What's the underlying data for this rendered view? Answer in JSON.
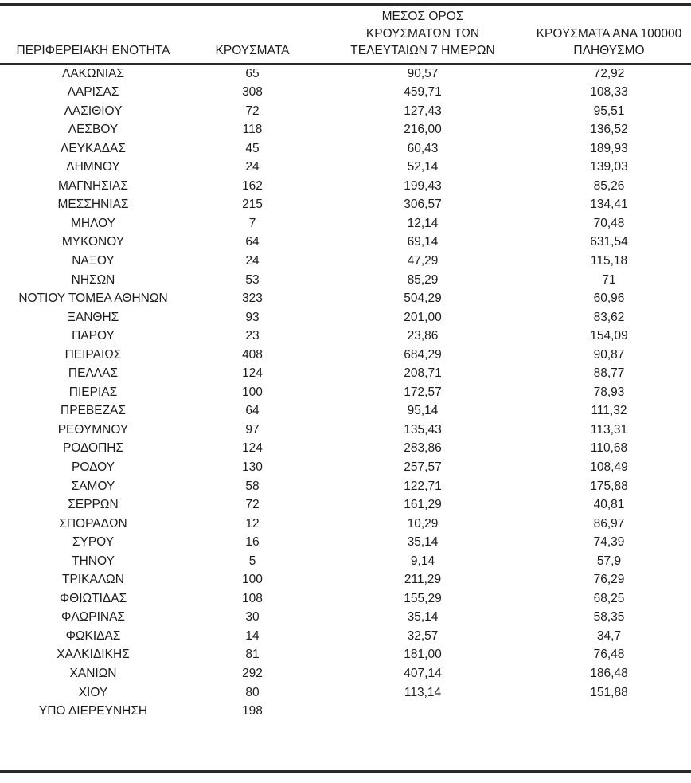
{
  "table": {
    "headers": {
      "col1": "ΠΕΡΙΦΕΡΕΙΑΚΗ ΕΝΟΤΗΤΑ",
      "col2": "ΚΡΟΥΣΜΑΤΑ",
      "col3_line1": "ΜΕΣΟΣ ΟΡΟΣ",
      "col3_line2": "ΚΡΟΥΣΜΑΤΩΝ ΤΩΝ",
      "col3_line3": "ΤΕΛΕΥΤΑΙΩΝ 7 ΗΜΕΡΩΝ",
      "col4_line1": "ΚΡΟΥΣΜΑΤΑ ΑΝΑ 100000",
      "col4_line2": "ΠΛΗΘΥΣΜΟ"
    },
    "rows": [
      [
        "ΛΑΚΩΝΙΑΣ",
        "65",
        "90,57",
        "72,92"
      ],
      [
        "ΛΑΡΙΣΑΣ",
        "308",
        "459,71",
        "108,33"
      ],
      [
        "ΛΑΣΙΘΙΟΥ",
        "72",
        "127,43",
        "95,51"
      ],
      [
        "ΛΕΣΒΟΥ",
        "118",
        "216,00",
        "136,52"
      ],
      [
        "ΛΕΥΚΑΔΑΣ",
        "45",
        "60,43",
        "189,93"
      ],
      [
        "ΛΗΜΝΟΥ",
        "24",
        "52,14",
        "139,03"
      ],
      [
        "ΜΑΓΝΗΣΙΑΣ",
        "162",
        "199,43",
        "85,26"
      ],
      [
        "ΜΕΣΣΗΝΙΑΣ",
        "215",
        "306,57",
        "134,41"
      ],
      [
        "ΜΗΛΟΥ",
        "7",
        "12,14",
        "70,48"
      ],
      [
        "ΜΥΚΟΝΟΥ",
        "64",
        "69,14",
        "631,54"
      ],
      [
        "ΝΑΞΟΥ",
        "24",
        "47,29",
        "115,18"
      ],
      [
        "ΝΗΣΩΝ",
        "53",
        "85,29",
        "71"
      ],
      [
        "ΝΟΤΙΟΥ ΤΟΜΕΑ ΑΘΗΝΩΝ",
        "323",
        "504,29",
        "60,96"
      ],
      [
        "ΞΑΝΘΗΣ",
        "93",
        "201,00",
        "83,62"
      ],
      [
        "ΠΑΡΟΥ",
        "23",
        "23,86",
        "154,09"
      ],
      [
        "ΠΕΙΡΑΙΩΣ",
        "408",
        "684,29",
        "90,87"
      ],
      [
        "ΠΕΛΛΑΣ",
        "124",
        "208,71",
        "88,77"
      ],
      [
        "ΠΙΕΡΙΑΣ",
        "100",
        "172,57",
        "78,93"
      ],
      [
        "ΠΡΕΒΕΖΑΣ",
        "64",
        "95,14",
        "111,32"
      ],
      [
        "ΡΕΘΥΜΝΟΥ",
        "97",
        "135,43",
        "113,31"
      ],
      [
        "ΡΟΔΟΠΗΣ",
        "124",
        "283,86",
        "110,68"
      ],
      [
        "ΡΟΔΟΥ",
        "130",
        "257,57",
        "108,49"
      ],
      [
        "ΣΑΜΟΥ",
        "58",
        "122,71",
        "175,88"
      ],
      [
        "ΣΕΡΡΩΝ",
        "72",
        "161,29",
        "40,81"
      ],
      [
        "ΣΠΟΡΑΔΩΝ",
        "12",
        "10,29",
        "86,97"
      ],
      [
        "ΣΥΡΟΥ",
        "16",
        "35,14",
        "74,39"
      ],
      [
        "ΤΗΝΟΥ",
        "5",
        "9,14",
        "57,9"
      ],
      [
        "ΤΡΙΚΑΛΩΝ",
        "100",
        "211,29",
        "76,29"
      ],
      [
        "ΦΘΙΩΤΙΔΑΣ",
        "108",
        "155,29",
        "68,25"
      ],
      [
        "ΦΛΩΡΙΝΑΣ",
        "30",
        "35,14",
        "58,35"
      ],
      [
        "ΦΩΚΙΔΑΣ",
        "14",
        "32,57",
        "34,7"
      ],
      [
        "ΧΑΛΚΙΔΙΚΗΣ",
        "81",
        "181,00",
        "76,48"
      ],
      [
        "ΧΑΝΙΩΝ",
        "292",
        "407,14",
        "186,48"
      ],
      [
        "ΧΙΟΥ",
        "80",
        "113,14",
        "151,88"
      ],
      [
        "ΥΠΟ ΔΙΕΡΕΥΝΗΣΗ",
        "198",
        "",
        ""
      ]
    ],
    "colors": {
      "text": "#1c1c1c",
      "rule": "#2a2a2a",
      "background": "#ffffff"
    }
  }
}
